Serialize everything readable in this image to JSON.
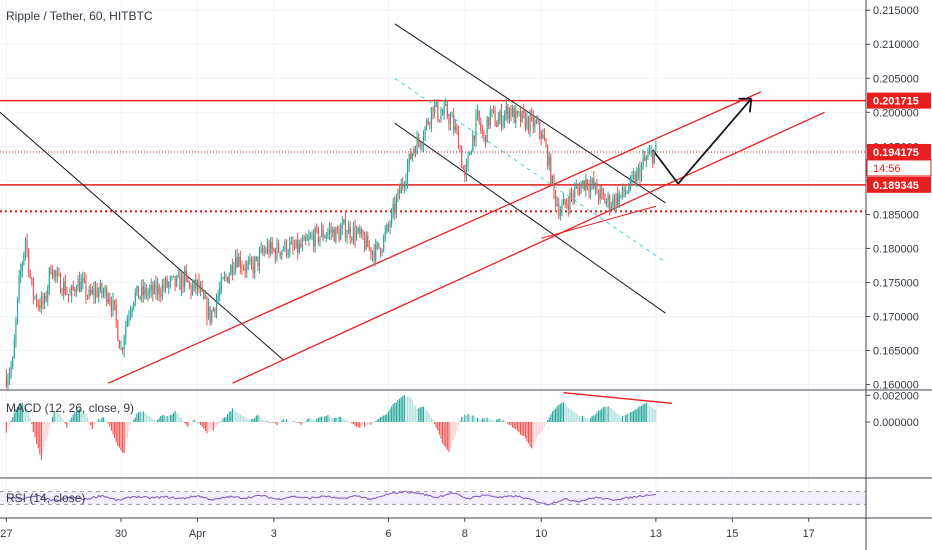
{
  "window": {
    "title": "Ripple / Tether, 60, HITBTC"
  },
  "colors": {
    "up": "#26a69a",
    "down": "#ef5350",
    "hline": "#e81e1e",
    "grid": "#f0f3fa",
    "axis": "#787b86",
    "macd_up": "#26a69a",
    "macd_up_light": "#b2dfdb",
    "macd_down": "#ef5350",
    "macd_down_light": "#ffcdd2",
    "rsi": "#7e57c2",
    "rsi_band": "#f3eefb"
  },
  "chart_data": {
    "type": "candlestick",
    "symbol": "Ripple / Tether",
    "interval": "60",
    "exchange": "HITBTC",
    "y_ticks": [
      "0.215000",
      "0.210000",
      "0.205000",
      "0.200000",
      "0.195000",
      "0.190000",
      "0.185000",
      "0.180000",
      "0.175000",
      "0.170000",
      "0.165000",
      "0.160000"
    ],
    "ylim": [
      0.1592,
      0.2165
    ],
    "x_ticks": [
      {
        "label": "27",
        "x": 0
      },
      {
        "label": "30",
        "x": 72
      },
      {
        "label": "Apr",
        "x": 120
      },
      {
        "label": "3",
        "x": 168
      },
      {
        "label": "6",
        "x": 240
      },
      {
        "label": "8",
        "x": 288
      },
      {
        "label": "10",
        "x": 336
      },
      {
        "label": "13",
        "x": 408
      },
      {
        "label": "15",
        "x": 456
      },
      {
        "label": "17",
        "x": 504
      }
    ],
    "xlim": [
      -4,
      540
    ],
    "price_keypoints": [
      [
        0,
        0.1612
      ],
      [
        4,
        0.163
      ],
      [
        8,
        0.1748
      ],
      [
        12,
        0.1815
      ],
      [
        16,
        0.1738
      ],
      [
        20,
        0.172
      ],
      [
        24,
        0.1718
      ],
      [
        28,
        0.1775
      ],
      [
        32,
        0.1752
      ],
      [
        36,
        0.1745
      ],
      [
        40,
        0.1728
      ],
      [
        44,
        0.175
      ],
      [
        48,
        0.1745
      ],
      [
        52,
        0.1728
      ],
      [
        56,
        0.1738
      ],
      [
        60,
        0.1735
      ],
      [
        64,
        0.1735
      ],
      [
        68,
        0.1705
      ],
      [
        72,
        0.165
      ],
      [
        76,
        0.17
      ],
      [
        80,
        0.173
      ],
      [
        84,
        0.1732
      ],
      [
        88,
        0.1735
      ],
      [
        92,
        0.1735
      ],
      [
        96,
        0.174
      ],
      [
        100,
        0.1745
      ],
      [
        104,
        0.1748
      ],
      [
        108,
        0.1748
      ],
      [
        112,
        0.1755
      ],
      [
        116,
        0.174
      ],
      [
        120,
        0.1745
      ],
      [
        124,
        0.172
      ],
      [
        128,
        0.17
      ],
      [
        132,
        0.1725
      ],
      [
        136,
        0.1748
      ],
      [
        140,
        0.1765
      ],
      [
        144,
        0.179
      ],
      [
        148,
        0.1778
      ],
      [
        152,
        0.177
      ],
      [
        156,
        0.1775
      ],
      [
        160,
        0.179
      ],
      [
        164,
        0.18
      ],
      [
        168,
        0.1795
      ],
      [
        172,
        0.18
      ],
      [
        176,
        0.1802
      ],
      [
        180,
        0.1798
      ],
      [
        184,
        0.18
      ],
      [
        188,
        0.1805
      ],
      [
        192,
        0.1815
      ],
      [
        196,
        0.1818
      ],
      [
        200,
        0.1822
      ],
      [
        204,
        0.1825
      ],
      [
        208,
        0.182
      ],
      [
        212,
        0.183
      ],
      [
        216,
        0.1825
      ],
      [
        220,
        0.1822
      ],
      [
        224,
        0.181
      ],
      [
        228,
        0.18
      ],
      [
        232,
        0.1795
      ],
      [
        236,
        0.1808
      ],
      [
        240,
        0.183
      ],
      [
        244,
        0.186
      ],
      [
        248,
        0.189
      ],
      [
        252,
        0.192
      ],
      [
        256,
        0.195
      ],
      [
        260,
        0.196
      ],
      [
        264,
        0.1982
      ],
      [
        268,
        0.201
      ],
      [
        272,
        0.1995
      ],
      [
        276,
        0.2
      ],
      [
        280,
        0.1985
      ],
      [
        284,
        0.196
      ],
      [
        288,
        0.19
      ],
      [
        292,
        0.1955
      ],
      [
        296,
        0.199
      ],
      [
        300,
        0.196
      ],
      [
        304,
        0.1998
      ],
      [
        308,
        0.1985
      ],
      [
        312,
        0.1995
      ],
      [
        316,
        0.2005
      ],
      [
        320,
        0.199
      ],
      [
        324,
        0.199
      ],
      [
        328,
        0.1985
      ],
      [
        332,
        0.1982
      ],
      [
        336,
        0.197
      ],
      [
        340,
        0.1935
      ],
      [
        344,
        0.188
      ],
      [
        348,
        0.1855
      ],
      [
        352,
        0.1868
      ],
      [
        356,
        0.188
      ],
      [
        360,
        0.189
      ],
      [
        364,
        0.19
      ],
      [
        368,
        0.1892
      ],
      [
        372,
        0.188
      ],
      [
        376,
        0.187
      ],
      [
        380,
        0.1868
      ],
      [
        384,
        0.1875
      ],
      [
        388,
        0.188
      ],
      [
        392,
        0.1892
      ],
      [
        396,
        0.1905
      ],
      [
        400,
        0.1925
      ],
      [
        404,
        0.1935
      ],
      [
        408,
        0.1942
      ]
    ],
    "hlines": [
      {
        "price": 0.201715,
        "label": "0.201715",
        "style": "solid"
      },
      {
        "price": 0.194175,
        "label": "0.194175",
        "style": "dotted-current"
      },
      {
        "price": 0.189345,
        "label": "0.189345",
        "style": "solid"
      },
      {
        "price": 0.18545,
        "label": "",
        "style": "dotted"
      }
    ],
    "countdown": "14:56",
    "macd": {
      "label": "MACD (12, 26, close, 9)",
      "y_ticks": [
        "0.002000",
        "0.000000"
      ],
      "ylim": [
        -0.0042,
        0.0024
      ],
      "keypoints": [
        [
          0,
          -0.0008
        ],
        [
          6,
          0.001
        ],
        [
          10,
          0.0015
        ],
        [
          14,
          0.0008
        ],
        [
          18,
          -0.0012
        ],
        [
          22,
          -0.0028
        ],
        [
          26,
          -0.001
        ],
        [
          30,
          0.0008
        ],
        [
          34,
          0.0006
        ],
        [
          38,
          -0.0004
        ],
        [
          42,
          0.0006
        ],
        [
          46,
          0.001
        ],
        [
          50,
          0.0006
        ],
        [
          54,
          -0.0005
        ],
        [
          58,
          0.0002
        ],
        [
          62,
          0.0004
        ],
        [
          66,
          -0.0006
        ],
        [
          70,
          -0.0018
        ],
        [
          74,
          -0.0024
        ],
        [
          78,
          -0.0002
        ],
        [
          82,
          0.0006
        ],
        [
          86,
          0.0008
        ],
        [
          90,
          0.0004
        ],
        [
          94,
          0.0001
        ],
        [
          98,
          0.0005
        ],
        [
          102,
          0.0004
        ],
        [
          106,
          0.0008
        ],
        [
          110,
          0.0003
        ],
        [
          114,
          -0.0004
        ],
        [
          118,
          0.0002
        ],
        [
          122,
          -0.0002
        ],
        [
          126,
          -0.0008
        ],
        [
          130,
          -0.0006
        ],
        [
          134,
          0.0
        ],
        [
          138,
          0.0004
        ],
        [
          142,
          0.001
        ],
        [
          146,
          0.0006
        ],
        [
          150,
          0.0003
        ],
        [
          154,
          0.0002
        ],
        [
          158,
          0.0005
        ],
        [
          162,
          0.0001
        ],
        [
          166,
          0.0
        ],
        [
          170,
          -0.0002
        ],
        [
          174,
          0.0002
        ],
        [
          178,
          0.0001
        ],
        [
          182,
          0.0
        ],
        [
          186,
          -0.0002
        ],
        [
          190,
          0.0003
        ],
        [
          194,
          0.0002
        ],
        [
          198,
          0.0004
        ],
        [
          202,
          0.0005
        ],
        [
          206,
          0.0003
        ],
        [
          210,
          0.0004
        ],
        [
          214,
          0.0001
        ],
        [
          218,
          -0.0002
        ],
        [
          222,
          -0.0004
        ],
        [
          226,
          -0.0003
        ],
        [
          230,
          -0.0001
        ],
        [
          234,
          0.0003
        ],
        [
          238,
          0.0005
        ],
        [
          242,
          0.0012
        ],
        [
          246,
          0.0016
        ],
        [
          250,
          0.002
        ],
        [
          254,
          0.0018
        ],
        [
          258,
          0.001
        ],
        [
          262,
          0.0012
        ],
        [
          266,
          0.0006
        ],
        [
          270,
          -0.0004
        ],
        [
          274,
          -0.0016
        ],
        [
          278,
          -0.0022
        ],
        [
          282,
          -0.001
        ],
        [
          286,
          0.0004
        ],
        [
          290,
          0.0006
        ],
        [
          294,
          0.0004
        ],
        [
          298,
          0.0002
        ],
        [
          302,
          0.0003
        ],
        [
          306,
          0.0001
        ],
        [
          310,
          0.0002
        ],
        [
          314,
          0.0
        ],
        [
          318,
          -0.0004
        ],
        [
          322,
          -0.0008
        ],
        [
          326,
          -0.0012
        ],
        [
          330,
          -0.002
        ],
        [
          334,
          -0.001
        ],
        [
          338,
          -0.0004
        ],
        [
          342,
          0.0006
        ],
        [
          346,
          0.0012
        ],
        [
          350,
          0.0015
        ],
        [
          354,
          0.001
        ],
        [
          358,
          0.0006
        ],
        [
          362,
          0.0004
        ],
        [
          366,
          0.0002
        ],
        [
          370,
          0.0006
        ],
        [
          374,
          0.001
        ],
        [
          378,
          0.0012
        ],
        [
          382,
          0.0008
        ],
        [
          386,
          0.0004
        ],
        [
          390,
          0.0006
        ],
        [
          394,
          0.0008
        ],
        [
          398,
          0.0012
        ],
        [
          402,
          0.0014
        ],
        [
          406,
          0.001
        ]
      ]
    },
    "rsi": {
      "label": "RSI (14, close)",
      "band": [
        30,
        70
      ],
      "keypoints": [
        [
          0,
          52
        ],
        [
          10,
          48
        ],
        [
          20,
          56
        ],
        [
          30,
          40
        ],
        [
          40,
          52
        ],
        [
          50,
          46
        ],
        [
          60,
          58
        ],
        [
          70,
          42
        ],
        [
          80,
          55
        ],
        [
          90,
          50
        ],
        [
          100,
          53
        ],
        [
          110,
          48
        ],
        [
          120,
          57
        ],
        [
          130,
          44
        ],
        [
          140,
          54
        ],
        [
          150,
          50
        ],
        [
          160,
          58
        ],
        [
          170,
          46
        ],
        [
          180,
          55
        ],
        [
          190,
          49
        ],
        [
          200,
          56
        ],
        [
          210,
          47
        ],
        [
          220,
          57
        ],
        [
          230,
          45
        ],
        [
          240,
          62
        ],
        [
          250,
          70
        ],
        [
          260,
          64
        ],
        [
          270,
          52
        ],
        [
          280,
          66
        ],
        [
          290,
          48
        ],
        [
          300,
          60
        ],
        [
          310,
          52
        ],
        [
          320,
          56
        ],
        [
          330,
          44
        ],
        [
          340,
          30
        ],
        [
          350,
          46
        ],
        [
          360,
          40
        ],
        [
          370,
          52
        ],
        [
          380,
          44
        ],
        [
          390,
          50
        ],
        [
          400,
          58
        ],
        [
          408,
          62
        ]
      ]
    }
  }
}
